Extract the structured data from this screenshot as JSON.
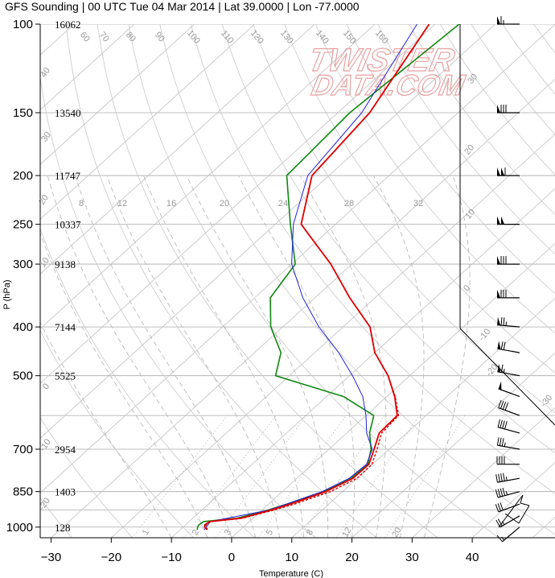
{
  "title": "GFS Sounding | 00 UTC Tue 04 Mar 2014 | Lat 39.0000 | Lon -77.0000",
  "watermark": {
    "line1": "TWISTER",
    "line2": "DATA.COM"
  },
  "colors": {
    "temperature": "#dd0000",
    "dewpoint": "#118811",
    "virtual_temp": "#dd0000",
    "parcel": "#2222dd",
    "isobar": "#aaaaaa",
    "isotherm": "#c0c0c0",
    "dry_adiabat": "#c8c8c8",
    "moist_adiabat": "#bbbbbb",
    "mixing_ratio": "#aaaaaa",
    "watermark": "#e8a0a0"
  },
  "chart_data": {
    "type": "skew-t",
    "xlabel": "Temperature (C)",
    "ylabel": "P (hPa)",
    "xlim": [
      -35,
      53
    ],
    "ylim": [
      1050,
      100
    ],
    "x_ticks": [
      -30,
      -20,
      -10,
      0,
      10,
      20,
      30,
      40
    ],
    "pressure_levels": [
      {
        "p": 100,
        "height": "16062"
      },
      {
        "p": 150,
        "height": "13540"
      },
      {
        "p": 200,
        "height": "11747"
      },
      {
        "p": 250,
        "height": "10337"
      },
      {
        "p": 300,
        "height": "9138"
      },
      {
        "p": 400,
        "height": "7144"
      },
      {
        "p": 500,
        "height": "5525"
      },
      {
        "p": 700,
        "height": "2954"
      },
      {
        "p": 850,
        "height": "1403"
      },
      {
        "p": 1000,
        "height": "128"
      }
    ],
    "temperature": [
      [
        1012,
        -5.6
      ],
      [
        1000,
        -6.4
      ],
      [
        990,
        -6.8
      ],
      [
        975,
        -6.6
      ],
      [
        960,
        -2
      ],
      [
        925,
        1.5
      ],
      [
        900,
        3.6
      ],
      [
        850,
        7.2
      ],
      [
        800,
        9.3
      ],
      [
        750,
        9.4
      ],
      [
        700,
        7.5
      ],
      [
        650,
        5.4
      ],
      [
        600,
        5.2
      ],
      [
        550,
        1.3
      ],
      [
        500,
        -3.6
      ],
      [
        450,
        -10
      ],
      [
        400,
        -15.5
      ],
      [
        350,
        -24.2
      ],
      [
        300,
        -33.5
      ],
      [
        250,
        -45.7
      ],
      [
        200,
        -52.8
      ],
      [
        150,
        -54.7
      ],
      [
        100,
        -61
      ]
    ],
    "virtual_temperature": [
      [
        1012,
        -5.5
      ],
      [
        1000,
        -6.2
      ],
      [
        990,
        -6.6
      ],
      [
        975,
        -6.4
      ],
      [
        960,
        -1.7
      ],
      [
        925,
        2
      ],
      [
        900,
        4.3
      ],
      [
        850,
        8
      ],
      [
        800,
        10
      ],
      [
        750,
        9.9
      ],
      [
        700,
        8
      ],
      [
        650,
        5.8
      ],
      [
        600,
        5.4
      ],
      [
        550,
        1.4
      ],
      [
        500,
        -3.6
      ],
      [
        450,
        -10
      ],
      [
        400,
        -15.5
      ],
      [
        350,
        -24.2
      ],
      [
        300,
        -33.5
      ],
      [
        250,
        -45.7
      ],
      [
        200,
        -52.8
      ],
      [
        150,
        -54.7
      ],
      [
        100,
        -61
      ]
    ],
    "dewpoint": [
      [
        1012,
        -7.2
      ],
      [
        1000,
        -7.6
      ],
      [
        990,
        -7.8
      ],
      [
        975,
        -7.6
      ],
      [
        960,
        -2.6
      ],
      [
        925,
        1
      ],
      [
        900,
        3
      ],
      [
        850,
        6.8
      ],
      [
        800,
        9
      ],
      [
        750,
        9.2
      ],
      [
        700,
        7
      ],
      [
        650,
        3.8
      ],
      [
        600,
        1.3
      ],
      [
        550,
        -7.2
      ],
      [
        500,
        -22.3
      ],
      [
        450,
        -25.6
      ],
      [
        400,
        -32
      ],
      [
        350,
        -37.4
      ],
      [
        300,
        -39.4
      ],
      [
        250,
        -47.5
      ],
      [
        200,
        -57
      ],
      [
        150,
        -58
      ],
      [
        100,
        -56
      ]
    ],
    "parcel": [
      [
        1012,
        -6
      ],
      [
        975,
        -6.5
      ],
      [
        925,
        1.2
      ],
      [
        850,
        6.6
      ],
      [
        800,
        8.7
      ],
      [
        750,
        9
      ],
      [
        700,
        7.2
      ],
      [
        650,
        3.3
      ],
      [
        600,
        0
      ],
      [
        550,
        -4
      ],
      [
        500,
        -9.5
      ],
      [
        450,
        -16
      ],
      [
        400,
        -24
      ],
      [
        350,
        -32
      ],
      [
        300,
        -40
      ],
      [
        250,
        -47
      ],
      [
        200,
        -53.5
      ],
      [
        150,
        -56
      ],
      [
        100,
        -63
      ]
    ],
    "mixing_ratio_labels": [
      {
        "w": 8,
        "label": "8"
      },
      {
        "w": 12,
        "label": "12"
      },
      {
        "w": 16,
        "label": "16"
      },
      {
        "w": 20,
        "label": "20"
      },
      {
        "w": 24,
        "label": "24"
      },
      {
        "w": 28,
        "label": "28"
      },
      {
        "w": 32,
        "label": "32"
      }
    ],
    "bottom_mixing_labels": [
      "1",
      "2",
      "3",
      "5",
      "8",
      "12",
      "20"
    ],
    "isotherm_top_labels": [
      "60",
      "70",
      "80",
      "90",
      "100",
      "110",
      "120",
      "130",
      "140",
      "150",
      "160"
    ],
    "adiabat_side_labels": [
      "30",
      "20",
      "10",
      "0",
      "-10",
      "-20",
      "-30"
    ],
    "left_adiabat_labels": [
      "40",
      "30",
      "20",
      "10",
      "0",
      "-10",
      "-20",
      "-30"
    ],
    "hodograph": {
      "segments": [
        [
          620,
          655,
          650,
          615
        ],
        [
          650,
          615,
          647,
          625
        ],
        [
          647,
          625,
          658,
          628
        ],
        [
          658,
          628,
          645,
          650
        ],
        [
          645,
          650,
          628,
          638
        ]
      ]
    },
    "winds": [
      {
        "p": 100,
        "dir": 270,
        "spd": 65
      },
      {
        "p": 150,
        "dir": 270,
        "spd": 80
      },
      {
        "p": 200,
        "dir": 270,
        "spd": 110
      },
      {
        "p": 250,
        "dir": 270,
        "spd": 100
      },
      {
        "p": 300,
        "dir": 270,
        "spd": 80
      },
      {
        "p": 350,
        "dir": 270,
        "spd": 80
      },
      {
        "p": 400,
        "dir": 275,
        "spd": 75
      },
      {
        "p": 450,
        "dir": 280,
        "spd": 70
      },
      {
        "p": 500,
        "dir": 280,
        "spd": 65
      },
      {
        "p": 550,
        "dir": 290,
        "spd": 50
      },
      {
        "p": 600,
        "dir": 290,
        "spd": 40
      },
      {
        "p": 650,
        "dir": 285,
        "spd": 40
      },
      {
        "p": 700,
        "dir": 280,
        "spd": 35
      },
      {
        "p": 750,
        "dir": 270,
        "spd": 40
      },
      {
        "p": 800,
        "dir": 260,
        "spd": 45
      },
      {
        "p": 850,
        "dir": 255,
        "spd": 45
      },
      {
        "p": 900,
        "dir": 250,
        "spd": 30
      },
      {
        "p": 950,
        "dir": 240,
        "spd": 25
      },
      {
        "p": 1000,
        "dir": 230,
        "spd": 15
      }
    ]
  }
}
